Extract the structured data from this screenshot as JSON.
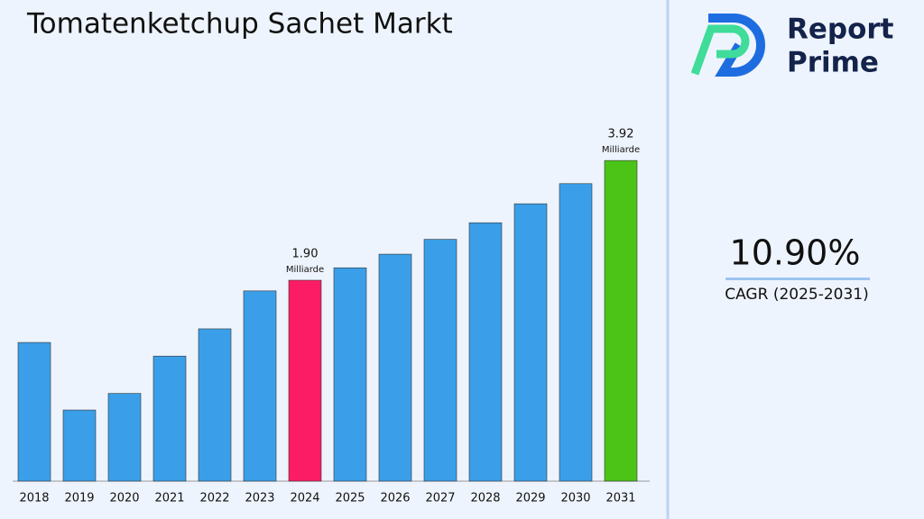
{
  "chart_data": {
    "type": "bar",
    "title": "Tomatenketchup Sachet Markt",
    "categories": [
      "2018",
      "2019",
      "2020",
      "2021",
      "2022",
      "2023",
      "2024",
      "2025",
      "2026",
      "2027",
      "2028",
      "2029",
      "2030",
      "2031"
    ],
    "values": [
      0.85,
      -0.29,
      -0.01,
      0.62,
      1.08,
      1.72,
      1.9,
      2.11,
      2.34,
      2.59,
      2.87,
      3.19,
      3.53,
      3.92
    ],
    "value_labels": [
      null,
      null,
      null,
      null,
      null,
      null,
      "1.90",
      null,
      null,
      null,
      null,
      null,
      null,
      "3.92"
    ],
    "unit_label": "Milliarde",
    "colors": [
      "#3a9fe8",
      "#3a9fe8",
      "#3a9fe8",
      "#3a9fe8",
      "#3a9fe8",
      "#3a9fe8",
      "#fc1c66",
      "#3a9fe8",
      "#3a9fe8",
      "#3a9fe8",
      "#3a9fe8",
      "#3a9fe8",
      "#3a9fe8",
      "#4cc417"
    ],
    "ylim": [
      -1.49,
      4.5
    ]
  },
  "sidebar": {
    "brand_line1": "Report",
    "brand_line2": "Prime",
    "cagr_value": "10.90%",
    "cagr_label": "CAGR (2025-2031)"
  }
}
